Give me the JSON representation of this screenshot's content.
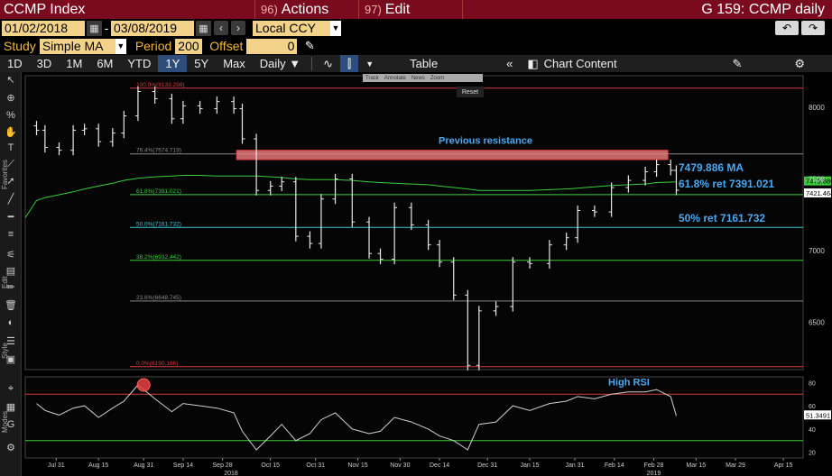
{
  "titlebar": {
    "title": "CCMP Index",
    "actions_num": "96)",
    "actions_label": "Actions",
    "edit_num": "97)",
    "edit_label": "Edit",
    "right_title": "G 159: CCMP daily"
  },
  "range": {
    "start_date": "01/02/2018",
    "end_date": "03/08/2019",
    "currency": "Local CCY"
  },
  "study": {
    "label": "Study",
    "value": "Simple MA",
    "period_label": "Period",
    "period_value": "200",
    "offset_label": "Offset",
    "offset_value": "0"
  },
  "toolbar": {
    "periods": [
      "1D",
      "3D",
      "1M",
      "6M",
      "YTD",
      "1Y",
      "5Y",
      "Max"
    ],
    "active_period": "1Y",
    "frequency": "Daily",
    "table_label": "Table",
    "chart_content_label": "Chart Content"
  },
  "mini_toolbar": {
    "items": [
      "Track",
      "Annotate",
      "News",
      "Zoom"
    ],
    "reset_label": "Reset"
  },
  "left_labels": {
    "favorites": "Favorites",
    "edit": "Edit",
    "style": "Style",
    "modes": "Modes"
  },
  "colors": {
    "price_bar": "#e8e8e8",
    "ma_line": "#3ccc3c",
    "fib_red": "#d43c3c",
    "fib_green": "#3ccc3c",
    "fib_cyan": "#3cc8d4",
    "fib_gray": "#888888",
    "annotation": "#4aa8f0",
    "resistance_fill": "#f08080",
    "rsi_line": "#d0d0d0"
  },
  "chart_data": {
    "type": "ohlc",
    "x": [
      "2018-07-24",
      "2018-07-27",
      "2018-08-01",
      "2018-08-06",
      "2018-08-10",
      "2018-08-15",
      "2018-08-20",
      "2018-08-24",
      "2018-08-29",
      "2018-09-04",
      "2018-09-10",
      "2018-09-14",
      "2018-09-20",
      "2018-09-26",
      "2018-10-02",
      "2018-10-05",
      "2018-10-10",
      "2018-10-15",
      "2018-10-19",
      "2018-10-24",
      "2018-10-29",
      "2018-11-02",
      "2018-11-07",
      "2018-11-13",
      "2018-11-19",
      "2018-11-23",
      "2018-11-28",
      "2018-12-04",
      "2018-12-10",
      "2018-12-14",
      "2018-12-19",
      "2018-12-24",
      "2018-12-28",
      "2019-01-03",
      "2019-01-09",
      "2019-01-15",
      "2019-01-22",
      "2019-01-28",
      "2019-02-01",
      "2019-02-07",
      "2019-02-13",
      "2019-02-19",
      "2019-02-25",
      "2019-03-01",
      "2019-03-06",
      "2019-03-08"
    ],
    "close": [
      7840,
      7720,
      7700,
      7840,
      7850,
      7760,
      7820,
      7940,
      8110,
      8060,
      7920,
      8010,
      7990,
      8040,
      7990,
      7780,
      7420,
      7450,
      7480,
      7100,
      7050,
      7360,
      7500,
      7200,
      6980,
      6940,
      7300,
      7180,
      7040,
      6920,
      6690,
      6200,
      6580,
      6610,
      6920,
      6910,
      7040,
      7090,
      7280,
      7270,
      7440,
      7490,
      7550,
      7600,
      7560,
      7421.464
    ],
    "ma_200": [
      7350,
      7370,
      7390,
      7410,
      7430,
      7450,
      7470,
      7490,
      7505,
      7515,
      7520,
      7525,
      7525,
      7520,
      7520,
      7520,
      7520,
      7515,
      7510,
      7500,
      7495,
      7495,
      7495,
      7490,
      7480,
      7475,
      7470,
      7465,
      7460,
      7450,
      7440,
      7430,
      7420,
      7420,
      7420,
      7420,
      7425,
      7430,
      7435,
      7445,
      7455,
      7460,
      7465,
      7475,
      7478,
      7479.886
    ],
    "rsi": [
      62,
      56,
      52,
      58,
      60,
      50,
      58,
      64,
      78,
      66,
      55,
      62,
      60,
      58,
      54,
      38,
      22,
      34,
      44,
      30,
      36,
      48,
      54,
      40,
      36,
      38,
      50,
      46,
      40,
      34,
      30,
      22,
      44,
      46,
      60,
      56,
      62,
      64,
      68,
      66,
      70,
      72,
      72,
      74,
      68,
      51.3491
    ],
    "fib_levels": [
      {
        "label": "100.0%(8133.298)",
        "value": 8133.298
      },
      {
        "label": "76.4%(7674.719)",
        "value": 7674.719
      },
      {
        "label": "61.8%(7391.021)",
        "value": 7391.021
      },
      {
        "label": "50.0%(7161.732)",
        "value": 7161.732
      },
      {
        "label": "38.2%(6932.442)",
        "value": 6932.442
      },
      {
        "label": "23.6%(6648.745)",
        "value": 6648.745
      },
      {
        "label": "0.0%(6190.166)",
        "value": 6190.166
      }
    ],
    "price_ylim": [
      6170,
      8220
    ],
    "price_ticks": [
      8000,
      7500,
      7000,
      6500
    ],
    "rsi_ylim": [
      15,
      85
    ],
    "rsi_ticks": [
      80,
      60,
      40,
      20
    ],
    "rsi_bands": [
      70,
      30
    ],
    "x_ticks": [
      {
        "label": "Jul 31",
        "date": "2018-07-31"
      },
      {
        "label": "Aug 15",
        "date": "2018-08-15"
      },
      {
        "label": "Aug 31",
        "date": "2018-08-31"
      },
      {
        "label": "Sep 14",
        "date": "2018-09-14"
      },
      {
        "label": "Sep 28",
        "date": "2018-09-28"
      },
      {
        "label": "Oct 15",
        "date": "2018-10-15"
      },
      {
        "label": "Oct 31",
        "date": "2018-10-31"
      },
      {
        "label": "Nov 15",
        "date": "2018-11-15"
      },
      {
        "label": "Nov 30",
        "date": "2018-11-30"
      },
      {
        "label": "Dec 14",
        "date": "2018-12-14"
      },
      {
        "label": "Dec 31",
        "date": "2018-12-31"
      },
      {
        "label": "Jan 15",
        "date": "2019-01-15"
      },
      {
        "label": "Jan 31",
        "date": "2019-01-31"
      },
      {
        "label": "Feb 14",
        "date": "2019-02-14"
      },
      {
        "label": "Feb 28",
        "date": "2019-02-28"
      },
      {
        "label": "Mar 15",
        "date": "2019-03-15"
      },
      {
        "label": "Mar 29",
        "date": "2019-03-29"
      },
      {
        "label": "Apr 15",
        "date": "2019-04-15"
      }
    ],
    "x_range": [
      "2018-07-20",
      "2019-04-22"
    ],
    "year_labels": [
      {
        "label": "2018",
        "date": "2018-10-01"
      },
      {
        "label": "2019",
        "date": "2019-02-28"
      }
    ],
    "resistance_zone": {
      "label": "Previous resistance",
      "from": "2018-10-03",
      "to": "2019-03-05",
      "low": 7635,
      "high": 7700
    },
    "annotations": {
      "ma": "7479.886  MA",
      "ret618": "61.8% ret 7391.021",
      "ret50": "50% ret 7161.732",
      "high_rsi": "High RSI"
    },
    "rsi_circle_date": "2018-08-31",
    "last_price_label": "7479.886",
    "last_close_label": "7421.464",
    "last_rsi_label": "51.3491"
  }
}
